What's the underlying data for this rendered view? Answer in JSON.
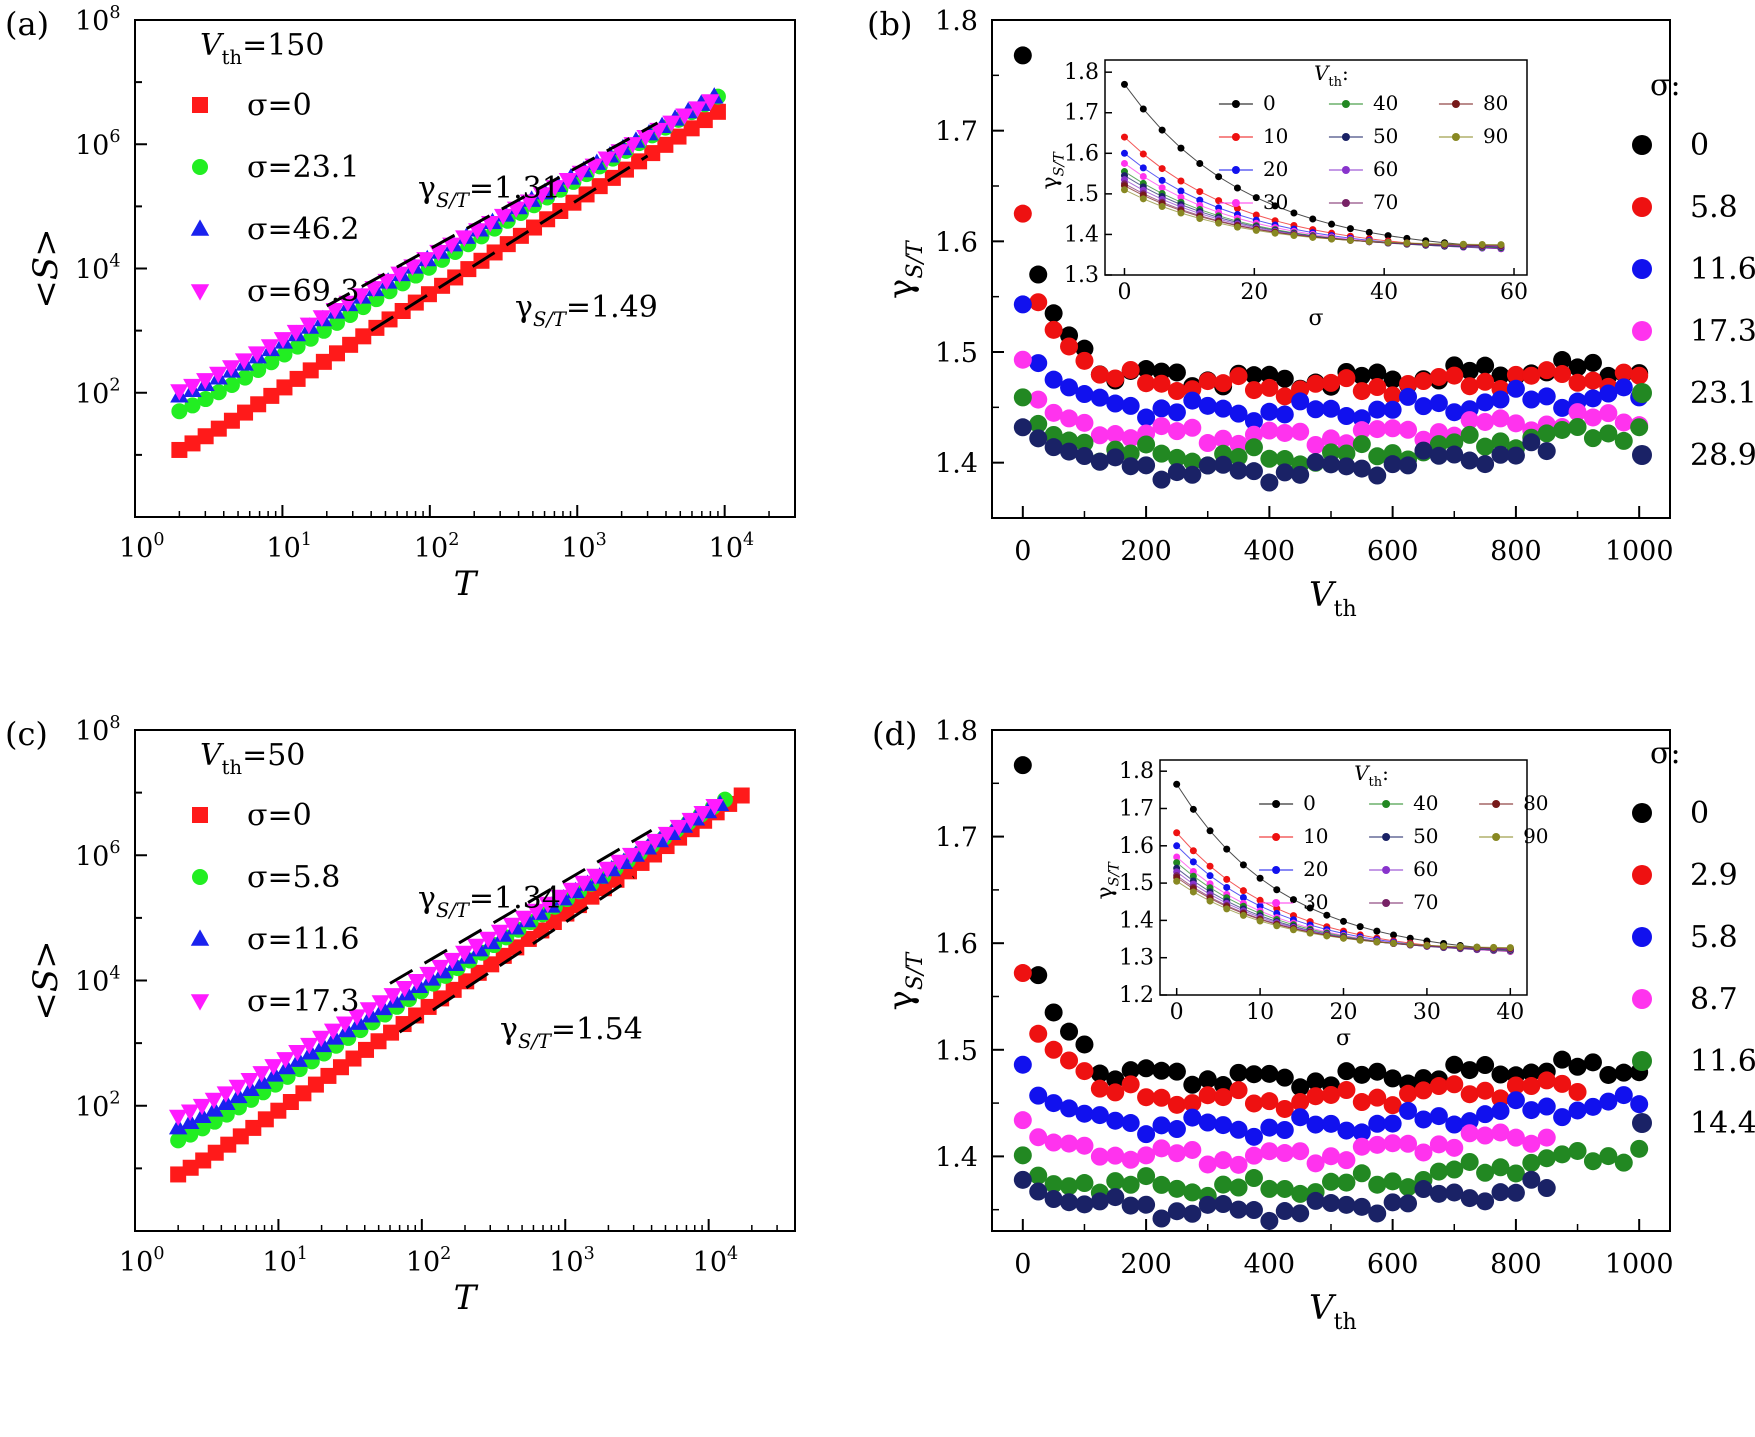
{
  "chart_data": [
    {
      "panel": "(a)",
      "type": "scatter",
      "xscale": "log",
      "yscale": "log",
      "xlim": [
        1,
        30000
      ],
      "ylim": [
        1,
        100000000.0
      ],
      "xlabel": "T",
      "ylabel": "<S>",
      "xticks": [
        "10^0",
        "10^1",
        "10^2",
        "10^3",
        "10^4"
      ],
      "yticks": [
        "10^2",
        "10^4",
        "10^6",
        "10^8"
      ],
      "header": "V_th=150",
      "legend": [
        "σ=0",
        "σ=23.1",
        "σ=46.2",
        "σ=69.3"
      ],
      "fits": [
        {
          "label": "γ_S/T=1.31",
          "exponent": 1.31,
          "x": [
            20,
            3500
          ],
          "y": [
            2500,
            2200000
          ]
        },
        {
          "label": "γ_S/T=1.49",
          "exponent": 1.49,
          "x": [
            40,
            3000
          ],
          "y": [
            1000,
            650000
          ]
        }
      ],
      "series": [
        {
          "name": "σ=0",
          "color": "#ff1a1a",
          "marker": "square",
          "x0": 2,
          "x1": 9000,
          "y0": 12,
          "slope": 1.49,
          "n": 42
        },
        {
          "name": "σ=23.1",
          "color": "#22ee22",
          "marker": "circle",
          "x0": 2,
          "x1": 9000,
          "y0": 45,
          "slope": 1.4,
          "n": 42
        },
        {
          "name": "σ=46.2",
          "color": "#1a22ee",
          "marker": "triangle-up",
          "x0": 2,
          "x1": 8500,
          "y0": 80,
          "slope": 1.34,
          "n": 42
        },
        {
          "name": "σ=69.3",
          "color": "#ff1aff",
          "marker": "triangle-down",
          "x0": 2,
          "x1": 8000,
          "y0": 95,
          "slope": 1.31,
          "n": 42
        }
      ]
    },
    {
      "panel": "(b)",
      "type": "scatter",
      "xlim": [
        -50,
        1050
      ],
      "ylim": [
        1.35,
        1.8
      ],
      "xlabel": "V_th",
      "ylabel": "γ_S/T",
      "xticks": [
        "0",
        "200",
        "400",
        "600",
        "800",
        "1000"
      ],
      "yticks": [
        "1.4",
        "1.5",
        "1.6",
        "1.7",
        "1.8"
      ],
      "legend_title": "σ:",
      "legend": [
        "0",
        "5.8",
        "11.6",
        "17.3",
        "23.1",
        "28.9"
      ],
      "series": [
        {
          "name": "0",
          "color": "#000000",
          "start": [
            1.768,
            1.57,
            1.535,
            1.515,
            1.503
          ],
          "base": 1.482,
          "tail": 1.485,
          "end_x": 1000
        },
        {
          "name": "5.8",
          "color": "#ee1111",
          "start": [
            1.625,
            1.545,
            1.52,
            1.505,
            1.492
          ],
          "base": 1.476,
          "tail": 1.477,
          "end_x": 1000
        },
        {
          "name": "11.6",
          "color": "#1111ee",
          "start": [
            1.543,
            1.49,
            1.475,
            1.468,
            1.462
          ],
          "base": 1.453,
          "tail": 1.46,
          "end_x": 1000
        },
        {
          "name": "17.3",
          "color": "#ff33ee",
          "start": [
            1.493,
            1.457,
            1.445,
            1.44,
            1.436
          ],
          "base": 1.43,
          "tail": 1.44,
          "end_x": 1000
        },
        {
          "name": "23.1",
          "color": "#228822",
          "start": [
            1.459,
            1.435,
            1.425,
            1.42,
            1.418
          ],
          "base": 1.41,
          "tail": 1.43,
          "end_x": 1000
        },
        {
          "name": "28.9",
          "color": "#1a2266",
          "start": [
            1.432,
            1.422,
            1.414,
            1.41,
            1.406
          ],
          "base": 1.398,
          "tail": 1.41,
          "end_x": 870
        }
      ],
      "inset": {
        "xlim": [
          -3,
          62
        ],
        "ylim": [
          1.3,
          1.83
        ],
        "xlabel": "σ",
        "ylabel": "γ_S/T",
        "xticks": [
          "0",
          "20",
          "40",
          "60"
        ],
        "yticks": [
          "1.3",
          "1.4",
          "1.5",
          "1.6",
          "1.7",
          "1.8"
        ],
        "legend_title": "V_th:",
        "legend": [
          "0",
          "10",
          "20",
          "30",
          "40",
          "50",
          "60",
          "70",
          "80",
          "90"
        ],
        "series_start": [
          1.77,
          1.64,
          1.6,
          1.575,
          1.555,
          1.545,
          1.535,
          1.525,
          1.52,
          1.51
        ],
        "converge": 1.35,
        "x_max": 58
      }
    },
    {
      "panel": "(c)",
      "type": "scatter",
      "xscale": "log",
      "yscale": "log",
      "xlim": [
        1,
        40000
      ],
      "ylim": [
        1,
        100000000.0
      ],
      "xlabel": "T",
      "ylabel": "<S>",
      "xticks": [
        "10^0",
        "10^1",
        "10^2",
        "10^3",
        "10^4"
      ],
      "yticks": [
        "10^2",
        "10^4",
        "10^6",
        "10^8"
      ],
      "header": "V_th=50",
      "legend": [
        "σ=0",
        "σ=5.8",
        "σ=11.6",
        "σ=17.3"
      ],
      "fits": [
        {
          "label": "γ_S/T=1.34",
          "exponent": 1.34,
          "x": [
            60,
            4000
          ],
          "y": [
            9000,
            2500000
          ]
        },
        {
          "label": "γ_S/T=1.54",
          "exponent": 1.54,
          "x": [
            70,
            3000
          ],
          "y": [
            1500,
            450000
          ]
        }
      ],
      "series": [
        {
          "name": "σ=0",
          "color": "#ff1a1a",
          "marker": "square",
          "x0": 2,
          "x1": 17000,
          "y0": 8,
          "slope": 1.54,
          "n": 46
        },
        {
          "name": "σ=5.8",
          "color": "#22ee22",
          "marker": "circle",
          "x0": 2,
          "x1": 13000,
          "y0": 25,
          "slope": 1.44,
          "n": 46
        },
        {
          "name": "σ=11.6",
          "color": "#1a22ee",
          "marker": "triangle-up",
          "x0": 2,
          "x1": 12000,
          "y0": 40,
          "slope": 1.38,
          "n": 46
        },
        {
          "name": "σ=17.3",
          "color": "#ff1aff",
          "marker": "triangle-down",
          "x0": 2,
          "x1": 11000,
          "y0": 60,
          "slope": 1.34,
          "n": 46
        }
      ]
    },
    {
      "panel": "(d)",
      "type": "scatter",
      "xlim": [
        -50,
        1050
      ],
      "ylim": [
        1.33,
        1.8
      ],
      "xlabel": "V_th",
      "ylabel": "γ_S/T",
      "xticks": [
        "0",
        "200",
        "400",
        "600",
        "800",
        "1000"
      ],
      "yticks": [
        "1.4",
        "1.5",
        "1.6",
        "1.7",
        "1.8"
      ],
      "legend_title": "σ:",
      "legend": [
        "0",
        "2.9",
        "5.8",
        "8.7",
        "11.6",
        "14.4"
      ],
      "series": [
        {
          "name": "0",
          "color": "#000000",
          "start": [
            1.767,
            1.57,
            1.535,
            1.517,
            1.505
          ],
          "base": 1.48,
          "tail": 1.483,
          "end_x": 1000
        },
        {
          "name": "2.9",
          "color": "#ee1111",
          "start": [
            1.572,
            1.515,
            1.5,
            1.49,
            1.48
          ],
          "base": 1.46,
          "tail": 1.465,
          "end_x": 900
        },
        {
          "name": "5.8",
          "color": "#1111ee",
          "start": [
            1.486,
            1.457,
            1.45,
            1.445,
            1.44
          ],
          "base": 1.433,
          "tail": 1.45,
          "end_x": 1000
        },
        {
          "name": "8.7",
          "color": "#ff33ee",
          "start": [
            1.434,
            1.418,
            1.413,
            1.412,
            1.41
          ],
          "base": 1.405,
          "tail": 1.42,
          "end_x": 850
        },
        {
          "name": "11.6",
          "color": "#228822",
          "start": [
            1.401,
            1.382,
            1.374,
            1.372,
            1.375
          ],
          "base": 1.375,
          "tail": 1.405,
          "end_x": 1000
        },
        {
          "name": "14.4",
          "color": "#1a2266",
          "start": [
            1.378,
            1.367,
            1.36,
            1.357,
            1.355
          ],
          "base": 1.355,
          "tail": 1.37,
          "end_x": 870
        }
      ],
      "inset": {
        "xlim": [
          -2,
          42
        ],
        "ylim": [
          1.2,
          1.83
        ],
        "xlabel": "σ",
        "ylabel": "γ_S/T",
        "xticks": [
          "0",
          "10",
          "20",
          "30",
          "40"
        ],
        "yticks": [
          "1.2",
          "1.3",
          "1.4",
          "1.5",
          "1.6",
          "1.7",
          "1.8"
        ],
        "legend_title": "V_th:",
        "legend": [
          "0",
          "10",
          "20",
          "30",
          "40",
          "50",
          "60",
          "70",
          "80",
          "90"
        ],
        "series_start": [
          1.765,
          1.635,
          1.6,
          1.57,
          1.555,
          1.54,
          1.53,
          1.52,
          1.515,
          1.505
        ],
        "converge": 1.3,
        "x_max": 40
      }
    }
  ],
  "colors": {
    "v0": "#000000",
    "v10": "#ee1111",
    "v20": "#1111ee",
    "v30": "#ff33ee",
    "v40": "#228822",
    "v50": "#1a2266",
    "v60": "#8833cc",
    "v70": "#772266",
    "v80": "#771a1a",
    "v90": "#888822"
  }
}
